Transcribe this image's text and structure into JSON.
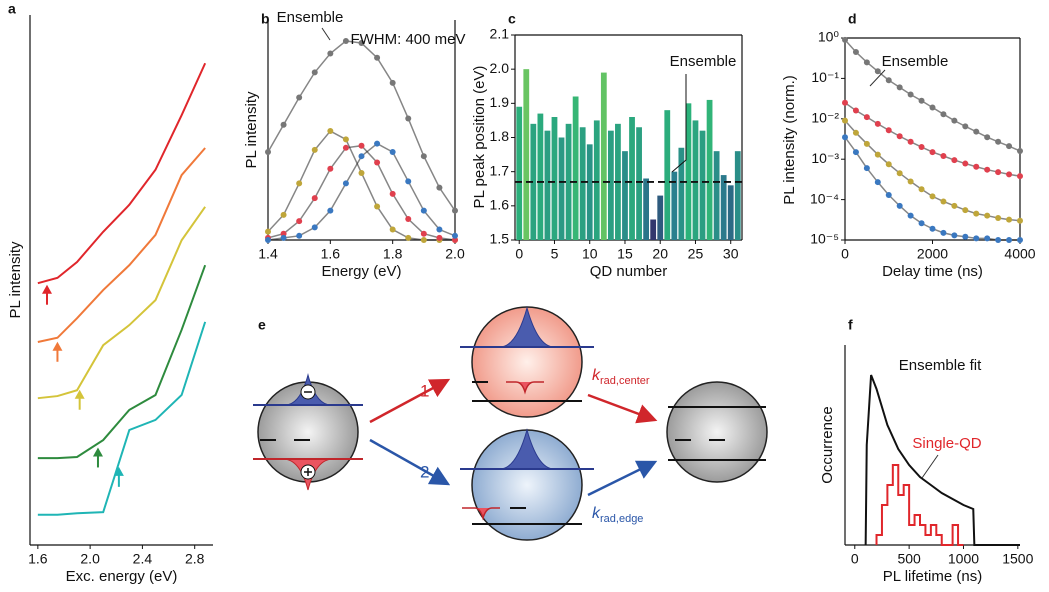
{
  "chart_data": [
    {
      "type": "line",
      "panel": "a",
      "xlabel": "Exc. energy (eV)",
      "ylabel": "PL intensity",
      "x": [
        1.6,
        1.75,
        1.9,
        2.1,
        2.3,
        2.5,
        2.7,
        2.88
      ],
      "xlim": [
        1.54,
        2.94
      ],
      "xticks": [
        1.6,
        {
          "value": 2,
          "label": "2.0"
        },
        2.4,
        2.8
      ],
      "ylim": [
        0,
        10
      ],
      "series": [
        {
          "color": "#e0262b",
          "values": [
            4.94,
            5.04,
            5.34,
            5.91,
            6.42,
            7.08,
            8.11,
            9.09
          ],
          "arrow": 1.67
        },
        {
          "color": "#f0793a",
          "values": [
            3.83,
            3.91,
            4.28,
            4.81,
            5.28,
            5.85,
            6.98,
            7.49
          ],
          "arrow": 1.75
        },
        {
          "color": "#d4c43a",
          "values": [
            2.77,
            2.81,
            2.92,
            3.77,
            4.15,
            4.62,
            5.75,
            6.38
          ],
          "arrow": 1.92
        },
        {
          "color": "#2e8b3e",
          "values": [
            1.64,
            1.64,
            1.66,
            1.98,
            2.55,
            2.83,
            4.06,
            5.28
          ],
          "arrow": 2.06
        },
        {
          "color": "#1fb5b5",
          "values": [
            0.57,
            0.57,
            0.6,
            0.62,
            2.17,
            2.36,
            2.83,
            4.21
          ],
          "arrow": 2.22
        }
      ]
    },
    {
      "type": "line",
      "panel": "b",
      "xlabel": "Energy (eV)",
      "ylabel": "PL intensity",
      "markers": true,
      "annotations": [
        "FWHM: 400 meV"
      ],
      "x": [
        1.4,
        1.45,
        1.5,
        1.55,
        1.6,
        1.65,
        1.7,
        1.75,
        1.8,
        1.85,
        1.9,
        1.95,
        2.0
      ],
      "xlim": [
        1.4,
        2.0
      ],
      "xticks": [
        1.4,
        1.6,
        1.8,
        {
          "value": 2,
          "label": "2.0"
        }
      ],
      "ylim": [
        0,
        1.05
      ],
      "series": [
        {
          "name": "Ensemble",
          "color": "#777777",
          "values": [
            0.42,
            0.55,
            0.68,
            0.8,
            0.89,
            0.95,
            0.94,
            0.87,
            0.75,
            0.58,
            0.4,
            0.25,
            0.14
          ]
        },
        {
          "color": "#bfa63a",
          "values": [
            0.04,
            0.12,
            0.27,
            0.43,
            0.52,
            0.48,
            0.32,
            0.16,
            0.05,
            0.01,
            0,
            0,
            0
          ]
        },
        {
          "color": "#e0404e",
          "values": [
            0.01,
            0.03,
            0.09,
            0.2,
            0.34,
            0.44,
            0.45,
            0.37,
            0.22,
            0.1,
            0.03,
            0.01,
            0
          ]
        },
        {
          "color": "#3a78c0",
          "values": [
            0,
            0.01,
            0.02,
            0.06,
            0.14,
            0.27,
            0.4,
            0.46,
            0.42,
            0.28,
            0.14,
            0.05,
            0.02
          ]
        }
      ]
    },
    {
      "type": "bar",
      "panel": "c",
      "xlabel": "QD number",
      "ylabel": "PL peak position (eV)",
      "x": [
        0,
        1,
        2,
        3,
        4,
        5,
        6,
        7,
        8,
        9,
        10,
        11,
        12,
        13,
        14,
        15,
        16,
        17,
        18,
        19,
        20,
        21,
        22,
        23,
        24,
        25,
        26,
        27,
        28,
        29,
        30,
        31
      ],
      "values": [
        1.89,
        2.0,
        1.84,
        1.87,
        1.82,
        1.86,
        1.8,
        1.84,
        1.92,
        1.83,
        1.78,
        1.85,
        1.99,
        1.82,
        1.84,
        1.76,
        1.86,
        1.83,
        1.68,
        1.56,
        1.63,
        1.88,
        1.7,
        1.77,
        1.9,
        1.85,
        1.82,
        1.91,
        1.76,
        1.69,
        1.66,
        1.76
      ],
      "colormap": [
        "#35185f",
        "#2a7f8e",
        "#2bb27a",
        "#a6d84a"
      ],
      "reference_line": {
        "label": "Ensemble",
        "value": 1.67
      },
      "xlim": [
        -0.6,
        31.6
      ],
      "xticks": [
        0,
        5,
        10,
        15,
        20,
        25,
        30
      ],
      "ylim": [
        1.5,
        2.1
      ],
      "yticks": [
        1.5,
        1.6,
        1.7,
        1.8,
        1.9,
        {
          "value": 2,
          "label": "2.0"
        },
        2.1
      ]
    },
    {
      "type": "line",
      "panel": "d",
      "xlabel": "Delay time (ns)",
      "ylabel": "PL intensity (norm.)",
      "markers": true,
      "log_y": true,
      "x": [
        0,
        250,
        500,
        750,
        1000,
        1250,
        1500,
        1750,
        2000,
        2250,
        2500,
        2750,
        3000,
        3250,
        3500,
        3750,
        4000
      ],
      "xlim": [
        0,
        4000
      ],
      "xticks": [
        0,
        2000,
        4000
      ],
      "ylim": [
        1e-05,
        1
      ],
      "yticks": [
        {
          "value": 1,
          "label": "10⁰"
        },
        {
          "value": 0.1,
          "label": "10⁻¹"
        },
        {
          "value": 0.01,
          "label": "10⁻²"
        },
        {
          "value": 0.001,
          "label": "10⁻³"
        },
        {
          "value": 0.0001,
          "label": "10⁻⁴"
        },
        {
          "value": 1e-05,
          "label": "10⁻⁵"
        }
      ],
      "series": [
        {
          "name": "Ensemble",
          "color": "#777777",
          "values": [
            0.9,
            0.45,
            0.25,
            0.15,
            0.09,
            0.06,
            0.04,
            0.028,
            0.019,
            0.013,
            0.009,
            0.0065,
            0.0048,
            0.0035,
            0.0027,
            0.0021,
            0.0016
          ]
        },
        {
          "color": "#e0404e",
          "values": [
            0.025,
            0.016,
            0.011,
            0.0075,
            0.0052,
            0.0037,
            0.0027,
            0.002,
            0.0015,
            0.0012,
            0.00095,
            0.00078,
            0.00065,
            0.00055,
            0.00048,
            0.00042,
            0.00038
          ]
        },
        {
          "color": "#bfa63a",
          "values": [
            0.009,
            0.0045,
            0.0024,
            0.0013,
            0.00075,
            0.00045,
            0.00028,
            0.00018,
            0.00012,
            9e-05,
            7e-05,
            5.5e-05,
            4.5e-05,
            4e-05,
            3.5e-05,
            3.2e-05,
            3e-05
          ]
        },
        {
          "color": "#3a78c0",
          "values": [
            0.0035,
            0.0015,
            0.0006,
            0.00027,
            0.00013,
            7e-05,
            4e-05,
            2.6e-05,
            1.9e-05,
            1.5e-05,
            1.3e-05,
            1.2e-05,
            1.1e-05,
            1.1e-05,
            1e-05,
            1e-05,
            1e-05
          ]
        }
      ]
    },
    {
      "type": "line",
      "panel": "f",
      "xlabel": "PL lifetime (ns)",
      "ylabel": "Occurrence",
      "xlim": [
        -90,
        1520
      ],
      "xticks": [
        0,
        500,
        1000,
        1500
      ],
      "ylim": [
        0,
        1
      ],
      "series": [
        {
          "name": "Ensemble fit",
          "color": "#111111",
          "x": [
            100,
            110,
            150,
            200,
            300,
            400,
            500,
            600,
            700,
            800,
            900,
            1000,
            1090,
            1100,
            1520
          ],
          "values": [
            0,
            0.5,
            0.85,
            0.78,
            0.6,
            0.48,
            0.4,
            0.34,
            0.3,
            0.26,
            0.23,
            0.2,
            0.18,
            0,
            0
          ]
        },
        {
          "name": "Single-QD",
          "color": "#e0262b",
          "bins": [
            200,
            250,
            300,
            350,
            400,
            450,
            500,
            550,
            600,
            650,
            700,
            750,
            800,
            850,
            900,
            950,
            1000
          ],
          "values": [
            0.05,
            0.2,
            0.3,
            0.4,
            0.25,
            0.3,
            0.1,
            0.15,
            0.1,
            0.05,
            0.1,
            0.05,
            0,
            0,
            0.1,
            0
          ]
        }
      ]
    }
  ],
  "diagram": {
    "panel": "e",
    "path_1": "1",
    "path_2": "2",
    "rate_center": {
      "symbol": "k",
      "subscript": "rad,center"
    },
    "rate_edge": {
      "symbol": "k",
      "subscript": "rad,edge"
    }
  }
}
